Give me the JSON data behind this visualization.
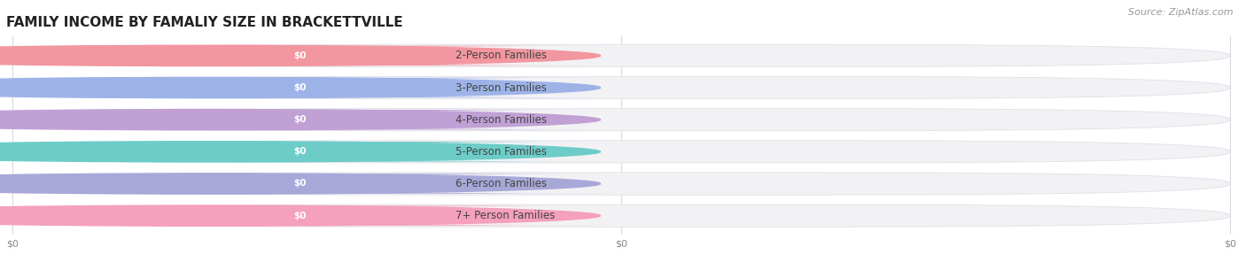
{
  "title": "FAMILY INCOME BY FAMALIY SIZE IN BRACKETTVILLE",
  "source": "Source: ZipAtlas.com",
  "categories": [
    "2-Person Families",
    "3-Person Families",
    "4-Person Families",
    "5-Person Families",
    "6-Person Families",
    "7+ Person Families"
  ],
  "values": [
    0,
    0,
    0,
    0,
    0,
    0
  ],
  "bar_colors": [
    "#f2969f",
    "#9db3e8",
    "#c0a0d5",
    "#6dccc8",
    "#a8a8d8",
    "#f5a0bc"
  ],
  "bar_bg_color": "#f2f2f5",
  "bar_border_color": "#e0e0e8",
  "label_color": "#444444",
  "value_text_color": "#ffffff",
  "title_color": "#222222",
  "source_color": "#999999",
  "bg_color": "#ffffff",
  "title_fontsize": 11,
  "label_fontsize": 8.5,
  "value_fontsize": 7.5,
  "source_fontsize": 8,
  "bar_height": 0.7,
  "x_max": 1.0,
  "x_ticks": [
    0.0,
    0.5,
    1.0
  ],
  "x_tick_labels": [
    "$0",
    "$0",
    "$0"
  ]
}
